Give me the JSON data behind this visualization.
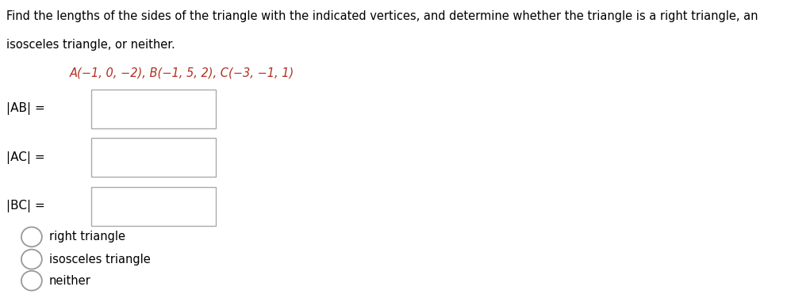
{
  "title_line1": "Find the lengths of the sides of the triangle with the indicated vertices, and determine whether the triangle is a right triangle, an",
  "title_line2": "isosceles triangle, or neither.",
  "vertices_text": "A(−1, 0, −2), B(−1, 5, 2), C(−3, −1, 1)",
  "labels": [
    "|AB| =",
    "|AC| =",
    "|BC| ="
  ],
  "radio_options": [
    "right triangle",
    "isosceles triangle",
    "neither"
  ],
  "bg_color": "#ffffff",
  "text_color": "#000000",
  "vertices_color": "#b03020",
  "box_edge_color": "#aaaaaa",
  "font_size_body": 10.5,
  "font_size_vertices": 10.5,
  "font_size_labels": 11,
  "font_size_radio": 10.5
}
